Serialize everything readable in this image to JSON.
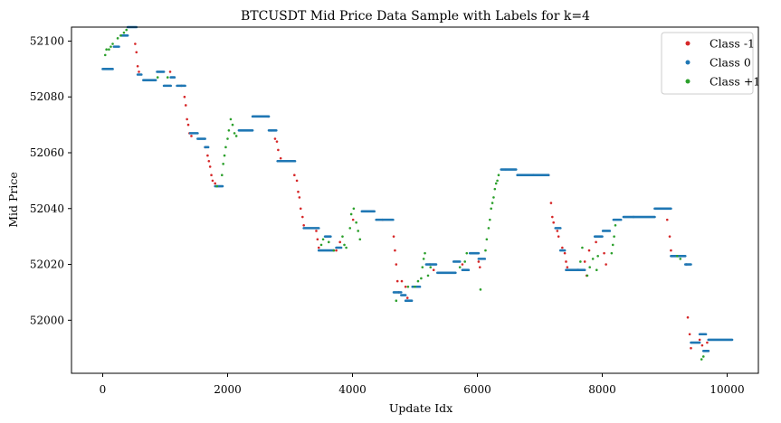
{
  "chart_data": {
    "type": "scatter",
    "title": "BTCUSDT Mid Price Data Sample with Labels for k=4",
    "xlabel": "Update Idx",
    "ylabel": "Mid Price",
    "xlim": [
      -500,
      10500
    ],
    "ylim": [
      51981,
      52105
    ],
    "xticks": [
      0,
      2000,
      4000,
      6000,
      8000,
      10000
    ],
    "yticks": [
      52000,
      52020,
      52040,
      52060,
      52080,
      52100
    ],
    "legend_position": "top-right",
    "grid": false,
    "series": [
      {
        "name": "Class -1",
        "color": "#d62728",
        "points": [
          [
            520,
            52099
          ],
          [
            540,
            52096
          ],
          [
            560,
            52091
          ],
          [
            580,
            52089
          ],
          [
            1080,
            52089
          ],
          [
            1260,
            52084
          ],
          [
            1310,
            52080
          ],
          [
            1330,
            52077
          ],
          [
            1350,
            52072
          ],
          [
            1370,
            52070
          ],
          [
            1390,
            52067
          ],
          [
            1420,
            52066
          ],
          [
            1640,
            52062
          ],
          [
            1680,
            52059
          ],
          [
            1700,
            52057
          ],
          [
            1720,
            52055
          ],
          [
            1740,
            52052
          ],
          [
            1760,
            52050
          ],
          [
            1800,
            52049
          ],
          [
            2650,
            52073
          ],
          [
            2700,
            52068
          ],
          [
            2760,
            52065
          ],
          [
            2790,
            52064
          ],
          [
            2810,
            52061
          ],
          [
            2850,
            52058
          ],
          [
            3050,
            52057
          ],
          [
            3070,
            52052
          ],
          [
            3110,
            52050
          ],
          [
            3130,
            52046
          ],
          [
            3150,
            52044
          ],
          [
            3170,
            52040
          ],
          [
            3200,
            52037
          ],
          [
            3220,
            52034
          ],
          [
            3420,
            52032
          ],
          [
            3440,
            52029
          ],
          [
            3460,
            52026
          ],
          [
            3740,
            52025
          ],
          [
            3800,
            52028
          ],
          [
            4010,
            52036
          ],
          [
            4480,
            52036
          ],
          [
            4660,
            52030
          ],
          [
            4680,
            52025
          ],
          [
            4700,
            52020
          ],
          [
            4720,
            52014
          ],
          [
            4740,
            52010
          ],
          [
            4790,
            52014
          ],
          [
            4850,
            52012
          ],
          [
            4880,
            52008
          ],
          [
            5240,
            52020
          ],
          [
            5300,
            52018
          ],
          [
            5760,
            52020
          ],
          [
            6020,
            52021
          ],
          [
            6040,
            52019
          ],
          [
            7140,
            52052
          ],
          [
            7180,
            52042
          ],
          [
            7200,
            52037
          ],
          [
            7220,
            52035
          ],
          [
            7280,
            52032
          ],
          [
            7300,
            52030
          ],
          [
            7360,
            52026
          ],
          [
            7400,
            52024
          ],
          [
            7420,
            52021
          ],
          [
            7440,
            52019
          ],
          [
            7720,
            52021
          ],
          [
            7750,
            52016
          ],
          [
            7790,
            52025
          ],
          [
            7900,
            52028
          ],
          [
            8030,
            52024
          ],
          [
            8060,
            52020
          ],
          [
            9040,
            52036
          ],
          [
            9080,
            52030
          ],
          [
            9100,
            52025
          ],
          [
            9120,
            52023
          ],
          [
            9350,
            52020
          ],
          [
            9370,
            52001
          ],
          [
            9400,
            51995
          ],
          [
            9420,
            51990
          ],
          [
            9560,
            51993
          ],
          [
            9600,
            51991
          ],
          [
            9680,
            51992
          ],
          [
            9700,
            51989
          ]
        ]
      },
      {
        "name": "Class 0",
        "color": "#1f77b4",
        "segments": [
          [
            0,
            160,
            52090
          ],
          [
            180,
            260,
            52098
          ],
          [
            290,
            400,
            52102
          ],
          [
            400,
            540,
            52105
          ],
          [
            560,
            620,
            52088
          ],
          [
            650,
            850,
            52086
          ],
          [
            870,
            980,
            52089
          ],
          [
            980,
            1090,
            52084
          ],
          [
            1090,
            1150,
            52087
          ],
          [
            1190,
            1320,
            52084
          ],
          [
            1400,
            1520,
            52067
          ],
          [
            1520,
            1640,
            52065
          ],
          [
            1640,
            1690,
            52062
          ],
          [
            1800,
            1920,
            52048
          ],
          [
            2180,
            2400,
            52068
          ],
          [
            2400,
            2660,
            52073
          ],
          [
            2660,
            2780,
            52068
          ],
          [
            2800,
            3080,
            52057
          ],
          [
            3220,
            3460,
            52033
          ],
          [
            3460,
            3700,
            52025
          ],
          [
            3560,
            3650,
            52030
          ],
          [
            3740,
            3820,
            52026
          ],
          [
            4150,
            4350,
            52039
          ],
          [
            4380,
            4650,
            52036
          ],
          [
            4660,
            4780,
            52010
          ],
          [
            4780,
            4850,
            52009
          ],
          [
            4850,
            4950,
            52007
          ],
          [
            4960,
            5080,
            52012
          ],
          [
            5180,
            5340,
            52020
          ],
          [
            5360,
            5650,
            52017
          ],
          [
            5620,
            5720,
            52021
          ],
          [
            5760,
            5860,
            52018
          ],
          [
            5880,
            6020,
            52024
          ],
          [
            6020,
            6120,
            52022
          ],
          [
            6380,
            6450,
            52054
          ],
          [
            6460,
            6620,
            52054
          ],
          [
            6640,
            6900,
            52052
          ],
          [
            6900,
            7140,
            52052
          ],
          [
            7250,
            7330,
            52033
          ],
          [
            7330,
            7400,
            52025
          ],
          [
            7420,
            7620,
            52018
          ],
          [
            7600,
            7720,
            52018
          ],
          [
            7880,
            8000,
            52030
          ],
          [
            8010,
            8120,
            52032
          ],
          [
            8180,
            8300,
            52036
          ],
          [
            8340,
            8500,
            52037
          ],
          [
            8500,
            8840,
            52037
          ],
          [
            8840,
            9100,
            52040
          ],
          [
            9100,
            9330,
            52023
          ],
          [
            9330,
            9420,
            52020
          ],
          [
            9420,
            9560,
            51992
          ],
          [
            9560,
            9660,
            51995
          ],
          [
            9620,
            9700,
            51989
          ],
          [
            9700,
            10080,
            51993
          ]
        ]
      },
      {
        "name": "Class +1",
        "color": "#2ca02c",
        "points": [
          [
            40,
            52095
          ],
          [
            60,
            52097
          ],
          [
            100,
            52097
          ],
          [
            130,
            52098
          ],
          [
            160,
            52099
          ],
          [
            240,
            52101
          ],
          [
            290,
            52102
          ],
          [
            340,
            52103
          ],
          [
            380,
            52104
          ],
          [
            880,
            52087
          ],
          [
            1040,
            52087
          ],
          [
            1830,
            52048
          ],
          [
            1910,
            52052
          ],
          [
            1930,
            52056
          ],
          [
            1950,
            52059
          ],
          [
            1970,
            52062
          ],
          [
            2000,
            52065
          ],
          [
            2020,
            52068
          ],
          [
            2050,
            52072
          ],
          [
            2080,
            52070
          ],
          [
            2110,
            52067
          ],
          [
            2140,
            52066
          ],
          [
            3500,
            52027
          ],
          [
            3530,
            52029
          ],
          [
            3620,
            52028
          ],
          [
            3700,
            52025
          ],
          [
            3840,
            52030
          ],
          [
            3870,
            52027
          ],
          [
            3900,
            52026
          ],
          [
            3960,
            52033
          ],
          [
            3980,
            52038
          ],
          [
            4020,
            52040
          ],
          [
            4060,
            52035
          ],
          [
            4090,
            52032
          ],
          [
            4120,
            52029
          ],
          [
            4700,
            52007
          ],
          [
            4890,
            52012
          ],
          [
            5000,
            52012
          ],
          [
            5050,
            52014
          ],
          [
            5100,
            52015
          ],
          [
            5120,
            52019
          ],
          [
            5140,
            52022
          ],
          [
            5160,
            52024
          ],
          [
            5210,
            52016
          ],
          [
            5250,
            52019
          ],
          [
            5720,
            52019
          ],
          [
            5800,
            52021
          ],
          [
            5830,
            52024
          ],
          [
            6050,
            52011
          ],
          [
            6130,
            52025
          ],
          [
            6150,
            52029
          ],
          [
            6180,
            52033
          ],
          [
            6200,
            52036
          ],
          [
            6220,
            52040
          ],
          [
            6240,
            52042
          ],
          [
            6260,
            52044
          ],
          [
            6280,
            52047
          ],
          [
            6300,
            52049
          ],
          [
            6320,
            52050
          ],
          [
            6340,
            52052
          ],
          [
            7650,
            52021
          ],
          [
            7680,
            52026
          ],
          [
            7760,
            52016
          ],
          [
            7800,
            52019
          ],
          [
            7850,
            52022
          ],
          [
            7910,
            52018
          ],
          [
            7930,
            52023
          ],
          [
            8150,
            52024
          ],
          [
            8170,
            52027
          ],
          [
            8190,
            52030
          ],
          [
            8210,
            52034
          ],
          [
            9200,
            52023
          ],
          [
            9250,
            52022
          ],
          [
            9590,
            51986
          ],
          [
            9620,
            51987
          ]
        ]
      }
    ]
  }
}
